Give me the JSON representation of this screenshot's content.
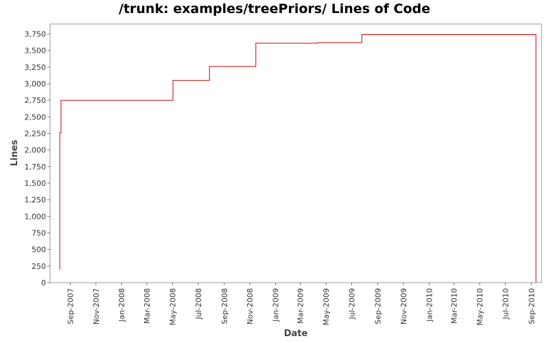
{
  "chart_data": {
    "type": "line",
    "title": "/trunk: examples/treePriors/ Lines of Code",
    "xlabel": "Date",
    "ylabel": "Lines",
    "x_tick_labels": [
      "Sep-2007",
      "Nov-2007",
      "Jan-2008",
      "Mar-2008",
      "May-2008",
      "Jul-2008",
      "Sep-2008",
      "Nov-2008",
      "Jan-2009",
      "Mar-2009",
      "May-2009",
      "Jul-2009",
      "Sep-2009",
      "Nov-2009",
      "Jan-2010",
      "Mar-2010",
      "May-2010",
      "Jul-2010",
      "Sep-2010"
    ],
    "y_ticks": [
      0,
      250,
      500,
      750,
      1000,
      1250,
      1500,
      1750,
      2000,
      2250,
      2500,
      2750,
      3000,
      3250,
      3500,
      3750
    ],
    "y_tick_labels": [
      "0",
      "250",
      "500",
      "750",
      "1,000",
      "1,250",
      "1,500",
      "1,750",
      "2,000",
      "2,250",
      "2,500",
      "2,750",
      "3,000",
      "3,250",
      "3,500",
      "3,750"
    ],
    "ylim": [
      0,
      3900
    ],
    "xlim": [
      "2007-07-15",
      "2010-09-25"
    ],
    "grid": false,
    "line_color": "#cc0000",
    "series": [
      {
        "style": "step",
        "points": [
          {
            "x": "2007-08-07",
            "y": 200
          },
          {
            "x": "2007-08-07",
            "y": 2260
          },
          {
            "x": "2007-08-10",
            "y": 2260
          },
          {
            "x": "2007-08-10",
            "y": 2750
          },
          {
            "x": "2008-05-02",
            "y": 2750
          },
          {
            "x": "2008-05-02",
            "y": 3050
          },
          {
            "x": "2008-07-28",
            "y": 3050
          },
          {
            "x": "2008-07-28",
            "y": 3260
          },
          {
            "x": "2008-11-15",
            "y": 3260
          },
          {
            "x": "2008-11-15",
            "y": 3610
          },
          {
            "x": "2009-04-10",
            "y": 3610
          },
          {
            "x": "2009-04-10",
            "y": 3620
          },
          {
            "x": "2009-07-25",
            "y": 3620
          },
          {
            "x": "2009-07-25",
            "y": 3740
          },
          {
            "x": "2010-09-12",
            "y": 3740
          },
          {
            "x": "2010-09-12",
            "y": 0
          }
        ]
      }
    ]
  }
}
